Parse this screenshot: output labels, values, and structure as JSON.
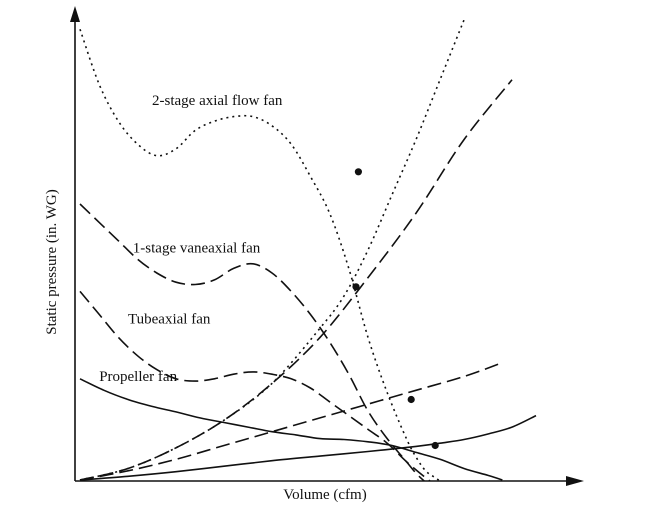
{
  "chart_data": {
    "type": "line",
    "title": "",
    "xlabel": "Volume (cfm)",
    "ylabel": "Static pressure (in. WG)",
    "xlim": [
      0,
      100
    ],
    "ylim": [
      0,
      100
    ],
    "grid": false,
    "legend": "none",
    "axis_ticks": "none",
    "series": [
      {
        "name": "2-stage axial flow fan",
        "kind": "fan",
        "dash": "dotted",
        "label_x": 15,
        "label_y": 81.5,
        "x": [
          0,
          4,
          8,
          12,
          16,
          20,
          24,
          28,
          32,
          36,
          40,
          44,
          48,
          52,
          56,
          60,
          64,
          68,
          70,
          72,
          74,
          76,
          78,
          80
        ],
        "y": [
          98,
          86,
          78,
          73,
          70.5,
          72,
          76,
          78,
          79,
          79,
          77,
          73,
          66,
          58,
          46,
          31,
          19,
          9,
          5,
          2,
          0.5,
          -1,
          -3,
          -5
        ]
      },
      {
        "name": "1-stage vaneaxial fan",
        "kind": "fan",
        "dash": "dashed",
        "label_x": 11,
        "label_y": 49.5,
        "x": [
          0,
          4,
          8,
          12,
          16,
          20,
          24,
          28,
          32,
          36,
          40,
          44,
          48,
          52,
          56,
          60,
          64,
          68,
          70,
          72
        ],
        "y": [
          60,
          56,
          52,
          48,
          45,
          43,
          42.5,
          43.5,
          46,
          47,
          45,
          41,
          36,
          30,
          23,
          15,
          9,
          4,
          1.5,
          -0.5
        ]
      },
      {
        "name": "Tubeaxial fan",
        "kind": "fan",
        "dash": "dashed",
        "label_x": 10,
        "label_y": 34,
        "x": [
          0,
          4,
          8,
          12,
          16,
          20,
          24,
          28,
          32,
          36,
          40,
          44,
          48,
          52,
          56,
          60,
          64,
          68,
          72,
          74
        ],
        "y": [
          41,
          36,
          31,
          27,
          24,
          22,
          21.5,
          22,
          23,
          23.5,
          23,
          22,
          20,
          17,
          14,
          11,
          8,
          4,
          0.5,
          -1
        ]
      },
      {
        "name": "Propeller fan",
        "kind": "fan",
        "dash": "solid",
        "label_x": 4,
        "label_y": 21.5,
        "x": [
          0,
          5,
          10,
          15,
          20,
          25,
          30,
          35,
          40,
          45,
          50,
          55,
          60,
          65,
          70,
          75,
          80,
          85,
          88
        ],
        "y": [
          22,
          19.5,
          17.5,
          16,
          14.8,
          13.5,
          12.5,
          11.5,
          10.5,
          9.8,
          9,
          8.8,
          8.3,
          7.5,
          6,
          4.5,
          2.5,
          1,
          0
        ]
      },
      {
        "name": "",
        "kind": "system",
        "dash": "dotted",
        "x": [
          0,
          10,
          20,
          30,
          40,
          50,
          55,
          60,
          65,
          70,
          75,
          80
        ],
        "y": [
          0,
          2.5,
          7,
          13,
          21,
          33,
          40,
          50,
          62,
          74,
          87,
          100
        ]
      },
      {
        "name": "",
        "kind": "system",
        "dash": "dashed",
        "x": [
          0,
          10,
          20,
          30,
          40,
          50,
          60,
          70,
          80,
          90
        ],
        "y": [
          0,
          2.5,
          7,
          13,
          21,
          31,
          44,
          58,
          74,
          87
        ]
      },
      {
        "name": "",
        "kind": "system",
        "dash": "dashed",
        "x": [
          0,
          10,
          20,
          30,
          40,
          50,
          60,
          70,
          80,
          88
        ],
        "y": [
          0,
          2,
          4.5,
          7.5,
          10.5,
          13.5,
          16.5,
          19.5,
          22.5,
          25.5
        ]
      },
      {
        "name": "",
        "kind": "system",
        "dash": "solid",
        "x": [
          0,
          10,
          20,
          30,
          40,
          50,
          60,
          70,
          75,
          80,
          85,
          90,
          95
        ],
        "y": [
          0,
          0.8,
          1.8,
          3,
          4.2,
          5.2,
          6.2,
          7.3,
          8,
          8.8,
          10,
          11.5,
          14
        ]
      }
    ],
    "operating_points": [
      {
        "x": 58,
        "y": 67
      },
      {
        "x": 57.5,
        "y": 42
      },
      {
        "x": 69,
        "y": 17.5
      },
      {
        "x": 74,
        "y": 7.5
      }
    ]
  }
}
